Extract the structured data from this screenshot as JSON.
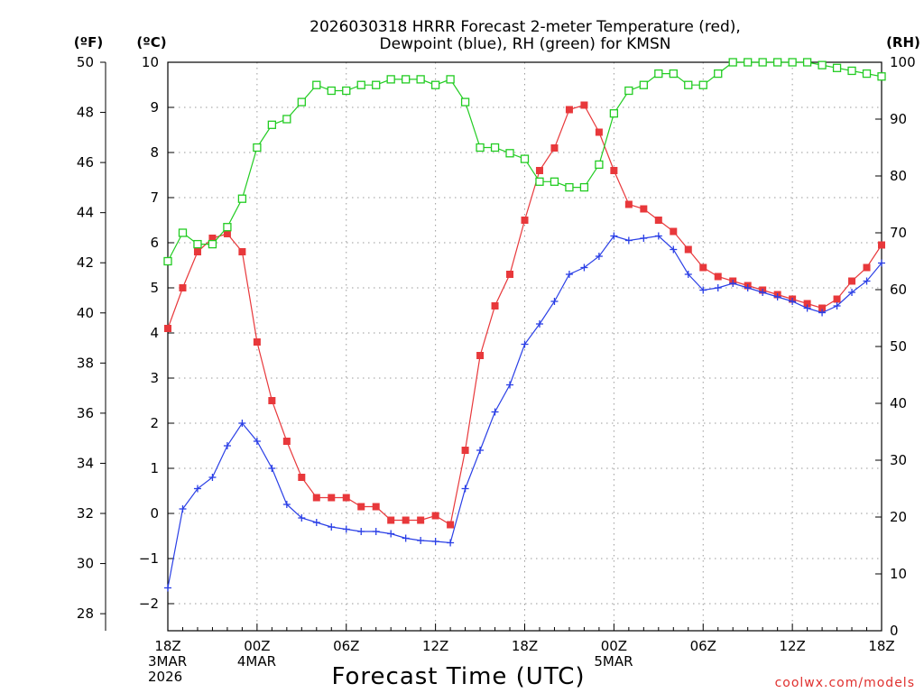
{
  "chart_data": {
    "type": "line",
    "title": "2026030318 HRRR Forecast 2-meter Temperature (red),",
    "subtitle": "Dewpoint (blue), RH (green) for KMSN",
    "xlabel": "Forecast Time (UTC)",
    "credit": "coolwx.com/models",
    "units": {
      "fahrenheit": "(ºF)",
      "celsius": "(ºC)",
      "rh": "(RH)"
    },
    "x_hours": [
      0,
      1,
      2,
      3,
      4,
      5,
      6,
      7,
      8,
      9,
      10,
      11,
      12,
      13,
      14,
      15,
      16,
      17,
      18,
      19,
      20,
      21,
      22,
      23,
      24,
      25,
      26,
      27,
      28,
      29,
      30,
      31,
      32,
      33,
      34,
      35,
      36,
      37,
      38,
      39,
      40,
      41,
      42,
      43,
      44,
      45,
      46,
      47,
      48
    ],
    "xlim": [
      0,
      48
    ],
    "x_ticks": [
      {
        "hour": 0,
        "lines": [
          "18Z",
          "3MAR",
          "2026"
        ]
      },
      {
        "hour": 6,
        "lines": [
          "00Z",
          "4MAR"
        ]
      },
      {
        "hour": 12,
        "lines": [
          "06Z"
        ]
      },
      {
        "hour": 18,
        "lines": [
          "12Z"
        ]
      },
      {
        "hour": 24,
        "lines": [
          "18Z"
        ]
      },
      {
        "hour": 30,
        "lines": [
          "00Z",
          "5MAR"
        ]
      },
      {
        "hour": 36,
        "lines": [
          "06Z"
        ]
      },
      {
        "hour": 42,
        "lines": [
          "12Z"
        ]
      },
      {
        "hour": 48,
        "lines": [
          "18Z"
        ]
      }
    ],
    "y_celsius": {
      "ylim": [
        -2.6,
        10
      ],
      "ticks": [
        "−2",
        "−1",
        "0",
        "1",
        "2",
        "3",
        "4",
        "5",
        "6",
        "7",
        "8",
        "9",
        "10"
      ]
    },
    "y_fahrenheit": {
      "ticks": [
        "28",
        "30",
        "32",
        "34",
        "36",
        "38",
        "40",
        "42",
        "44",
        "46",
        "48",
        "50"
      ]
    },
    "y_rh": {
      "ylim": [
        0,
        100
      ],
      "ticks": [
        "0",
        "10",
        "20",
        "30",
        "40",
        "50",
        "60",
        "70",
        "80",
        "90",
        "100"
      ]
    },
    "series": [
      {
        "name": "Temperature",
        "axis": "celsius",
        "color": "#e8383b",
        "marker": "filled-square",
        "values": [
          4.1,
          5.0,
          5.8,
          6.1,
          6.2,
          5.8,
          3.8,
          2.5,
          1.6,
          0.8,
          0.35,
          0.35,
          0.35,
          0.15,
          0.15,
          -0.15,
          -0.15,
          -0.15,
          -0.05,
          -0.25,
          1.4,
          3.5,
          4.6,
          5.3,
          6.5,
          7.6,
          8.1,
          8.95,
          9.05,
          8.45,
          7.6,
          6.85,
          6.75,
          6.5,
          6.25,
          5.85,
          5.45,
          5.25,
          5.15,
          5.05,
          4.95,
          4.85,
          4.75,
          4.65,
          4.55,
          4.75,
          5.15,
          5.45,
          5.95
        ]
      },
      {
        "name": "Dewpoint",
        "axis": "celsius",
        "color": "#2a3fe6",
        "marker": "plus",
        "values": [
          -1.65,
          0.1,
          0.55,
          0.8,
          1.5,
          2.0,
          1.6,
          1.0,
          0.2,
          -0.1,
          -0.2,
          -0.3,
          -0.35,
          -0.4,
          -0.4,
          -0.45,
          -0.55,
          -0.6,
          -0.62,
          -0.65,
          0.55,
          1.4,
          2.25,
          2.85,
          3.75,
          4.2,
          4.7,
          5.3,
          5.45,
          5.7,
          6.15,
          6.05,
          6.1,
          6.15,
          5.85,
          5.3,
          4.95,
          5.0,
          5.1,
          5.0,
          4.9,
          4.8,
          4.7,
          4.55,
          4.45,
          4.6,
          4.9,
          5.15,
          5.55
        ]
      },
      {
        "name": "RH",
        "axis": "rh",
        "color": "#22cc22",
        "marker": "open-square",
        "values": [
          65,
          70,
          68,
          68,
          71,
          76,
          85,
          89,
          90,
          93,
          96,
          95,
          95,
          96,
          96,
          97,
          97,
          97,
          96,
          97,
          93,
          85,
          85,
          84,
          83,
          79,
          79,
          78,
          78,
          82,
          91,
          95,
          96,
          98,
          98,
          96,
          96,
          98,
          100,
          100,
          100,
          100,
          100,
          100,
          99.5,
          99,
          98.5,
          98,
          97.5
        ]
      }
    ]
  }
}
